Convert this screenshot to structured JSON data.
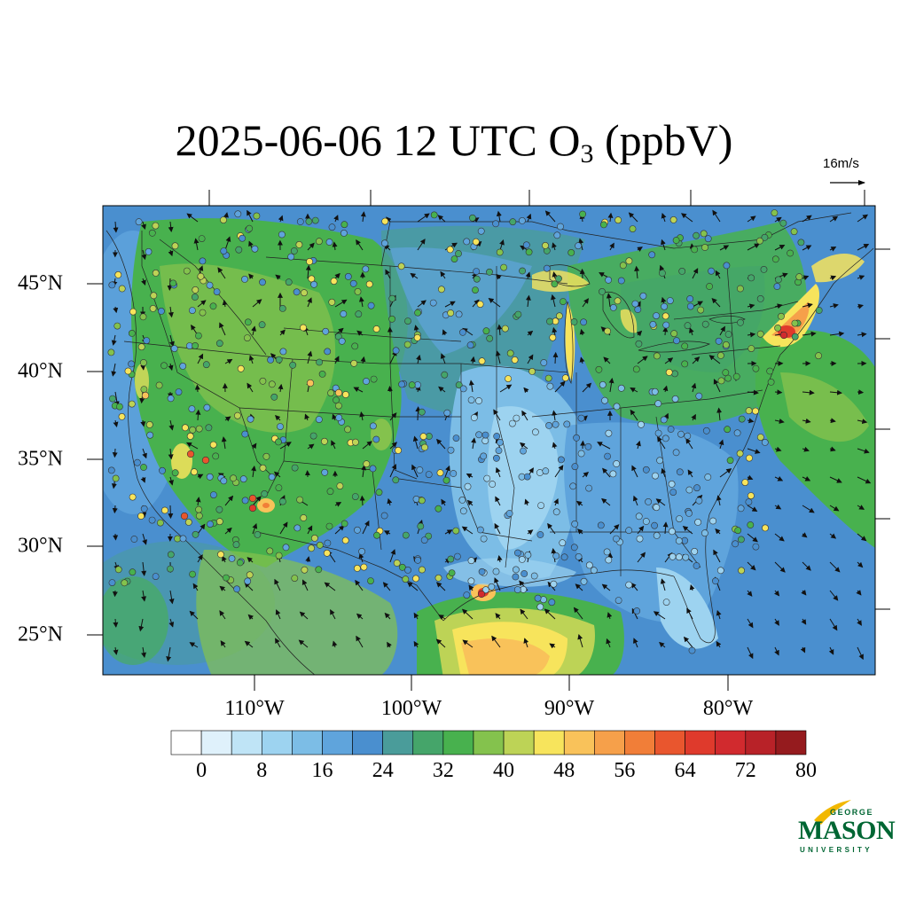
{
  "title": {
    "prefix": "2025-06-06 12 UTC O",
    "subscript": "3",
    "suffix": " (ppbV)"
  },
  "wind_reference": {
    "label": "16m/s",
    "speed_m_per_s": 16
  },
  "map": {
    "projection": "lambert-conformal",
    "region": "CONUS",
    "variable": "O3",
    "units": "ppbV",
    "valid_time": "2025-06-06 12 UTC",
    "latitude_labels": [
      "45°N",
      "40°N",
      "35°N",
      "30°N",
      "25°N"
    ],
    "longitude_labels": [
      "110°W",
      "100°W",
      "90°W",
      "80°W"
    ],
    "layers": [
      "filled-contour-ozone",
      "wind-vectors",
      "monitor-sites",
      "state-boundaries",
      "coastlines",
      "country-borders"
    ],
    "high_ozone_areas": [
      "NYC-Long Island plume",
      "Gulf of Mexico near Texas coast",
      "Southern California",
      "Arizona",
      "Lake Michigan shoreline"
    ],
    "low_ozone_areas": [
      "Lower Mississippi valley",
      "Florida",
      "Rocky Mountain lowlands"
    ]
  },
  "colorbar": {
    "tick_labels": [
      "0",
      "8",
      "16",
      "24",
      "32",
      "40",
      "48",
      "56",
      "64",
      "72",
      "80"
    ],
    "levels": [
      0,
      4,
      8,
      12,
      16,
      20,
      24,
      28,
      32,
      36,
      40,
      44,
      48,
      52,
      56,
      60,
      64,
      68,
      72,
      76,
      80
    ],
    "colors": [
      "#ffffff",
      "#dff1fb",
      "#bfe4f6",
      "#9dd3f0",
      "#7cbde6",
      "#5fa4dc",
      "#4a8fcf",
      "#4a9c9a",
      "#45a56a",
      "#48b14e",
      "#84c24d",
      "#bdd356",
      "#f7e45c",
      "#f9c25a",
      "#f6a04a",
      "#f17e38",
      "#e9562e",
      "#df3a2c",
      "#d12a2e",
      "#b82228",
      "#951b1e"
    ]
  },
  "logo": {
    "line1": "GEORGE",
    "line2": "MASON",
    "line3": "UNIVERSITY",
    "color": "#006633",
    "accent": "#f2b800"
  }
}
